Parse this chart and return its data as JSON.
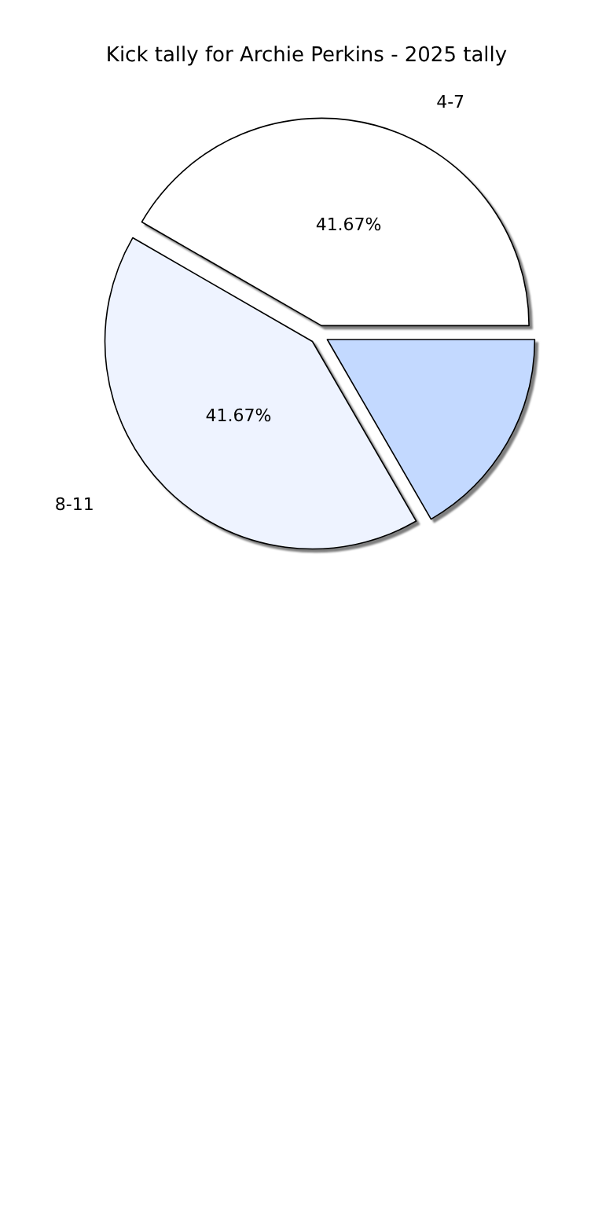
{
  "chart_data": {
    "type": "pie",
    "title": "Kick tally for Archie Perkins - 2025 tally",
    "categories": [
      "4-7",
      "8-11",
      null
    ],
    "values": [
      41.67,
      41.67,
      16.66
    ],
    "value_labels": [
      "41.67%",
      "41.67%",
      null
    ],
    "colors": [
      "#ffffff",
      "#eef3ff",
      "#c3d9ff"
    ],
    "legend": false
  }
}
